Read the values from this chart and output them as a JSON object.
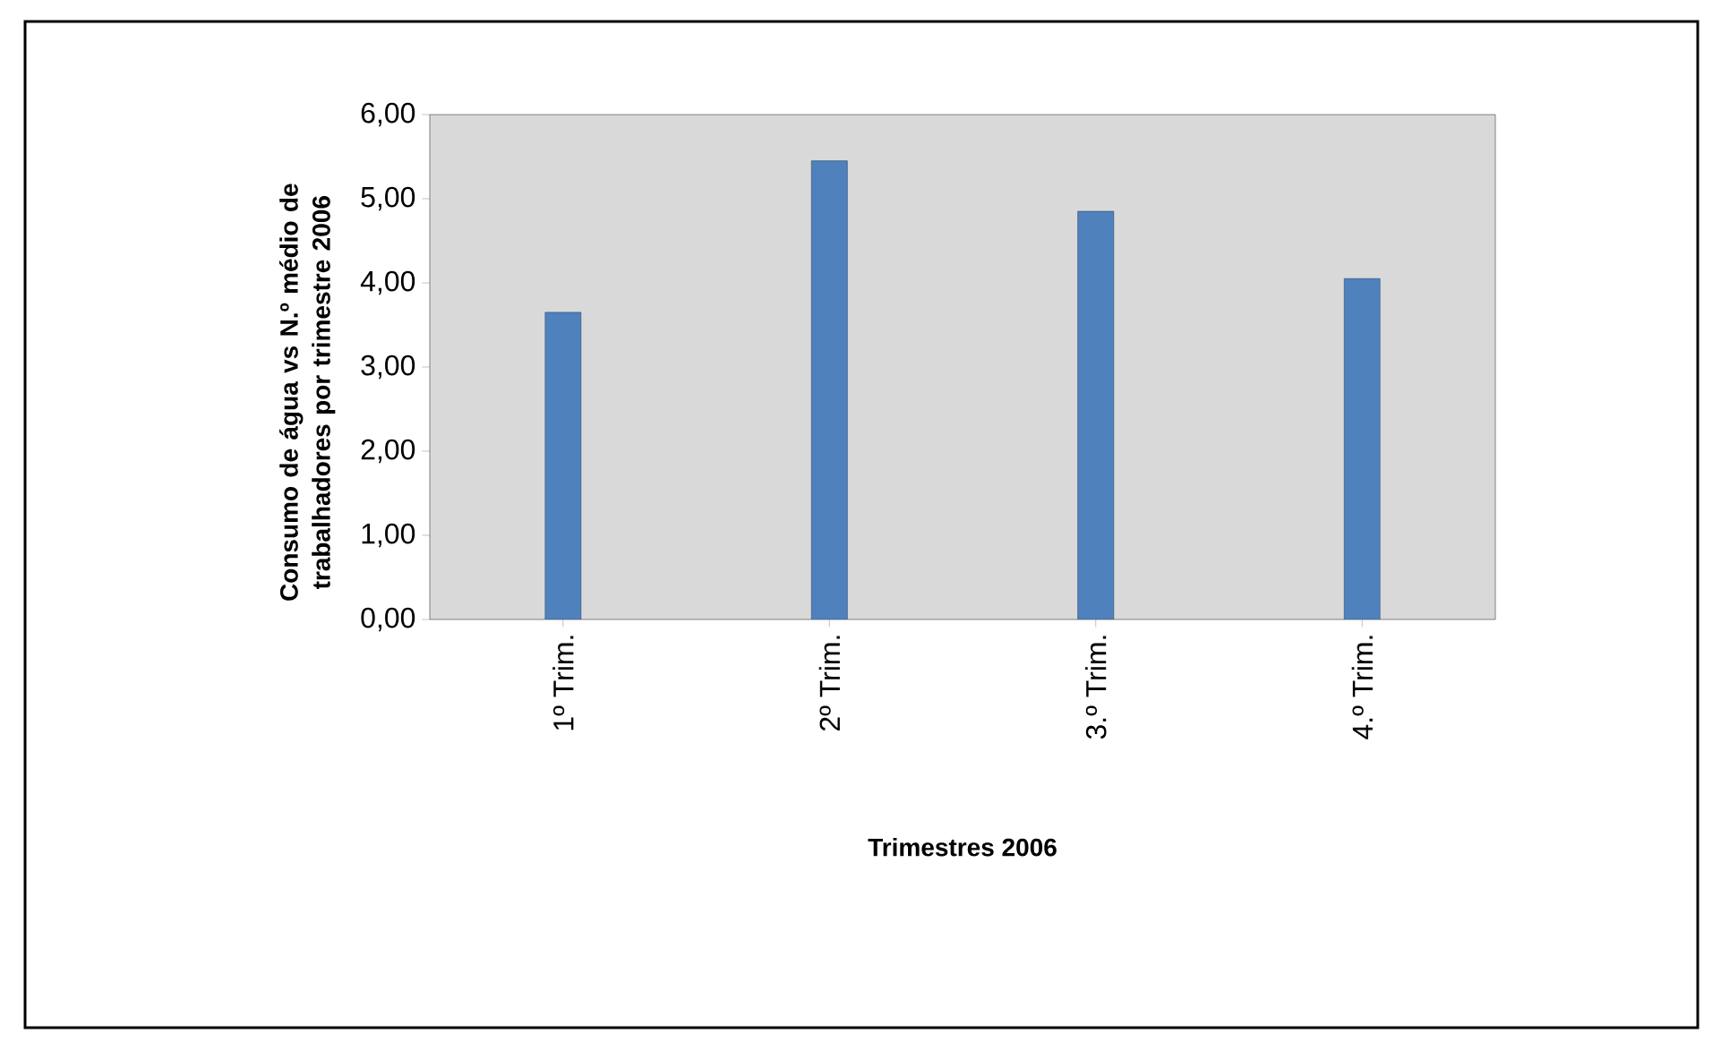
{
  "chart_data": {
    "type": "bar",
    "xlabel": "Trimestres 2006",
    "ylabel": "Consumo de água vs N.º médio de trabalhadores por trimestre 2006",
    "categories": [
      "1º Trim.",
      "2º Trim.",
      "3.º Trim.",
      "4.º Trim."
    ],
    "values": [
      3.65,
      5.45,
      4.85,
      4.05
    ],
    "color": "#4f81bd",
    "ylim": [
      0,
      6
    ],
    "yticks": [
      {
        "value": 0,
        "label": "0,00"
      },
      {
        "value": 1,
        "label": "1,00"
      },
      {
        "value": 2,
        "label": "2,00"
      },
      {
        "value": 3,
        "label": "3,00"
      },
      {
        "value": 4,
        "label": "4,00"
      },
      {
        "value": 5,
        "label": "5,00"
      },
      {
        "value": 6,
        "label": "6,00"
      }
    ]
  }
}
